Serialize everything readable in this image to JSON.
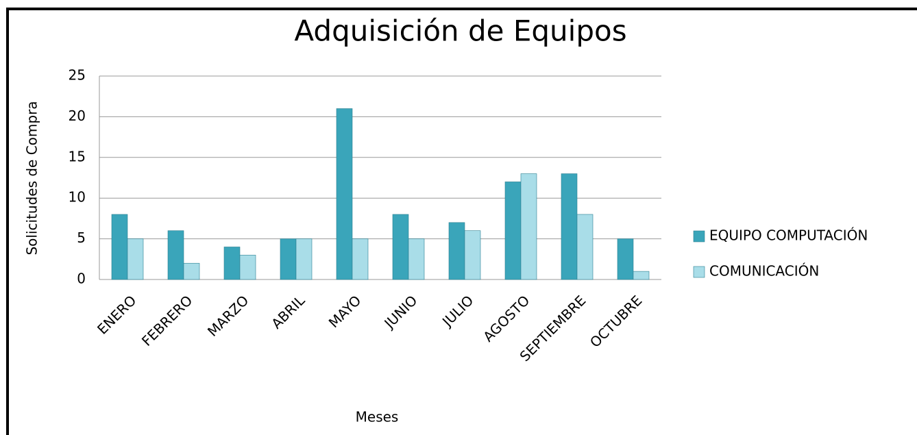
{
  "chart_data": {
    "type": "bar",
    "title": "Adquisición de Equipos",
    "x_label": "Meses",
    "y_label": "Solicitudes de Compra",
    "categories": [
      "ENERO",
      "FEBRERO",
      "MARZO",
      "ABRIL",
      "MAYO",
      "JUNIO",
      "JULIO",
      "AGOSTO",
      "SEPTIEMBRE",
      "OCTUBRE"
    ],
    "series": [
      {
        "name": "EQUIPO COMPUTACIÓN",
        "color": "#3aa5ba",
        "values": [
          8,
          6,
          4,
          5,
          21,
          8,
          7,
          12,
          13,
          5
        ]
      },
      {
        "name": "COMUNICACIÓN",
        "color": "#a9dde8",
        "values": [
          5,
          2,
          3,
          5,
          5,
          5,
          6,
          13,
          8,
          1
        ]
      }
    ],
    "ylim": [
      0,
      25
    ],
    "yticks": [
      0,
      5,
      10,
      15,
      20,
      25
    ],
    "grid": true,
    "legend": "right"
  }
}
